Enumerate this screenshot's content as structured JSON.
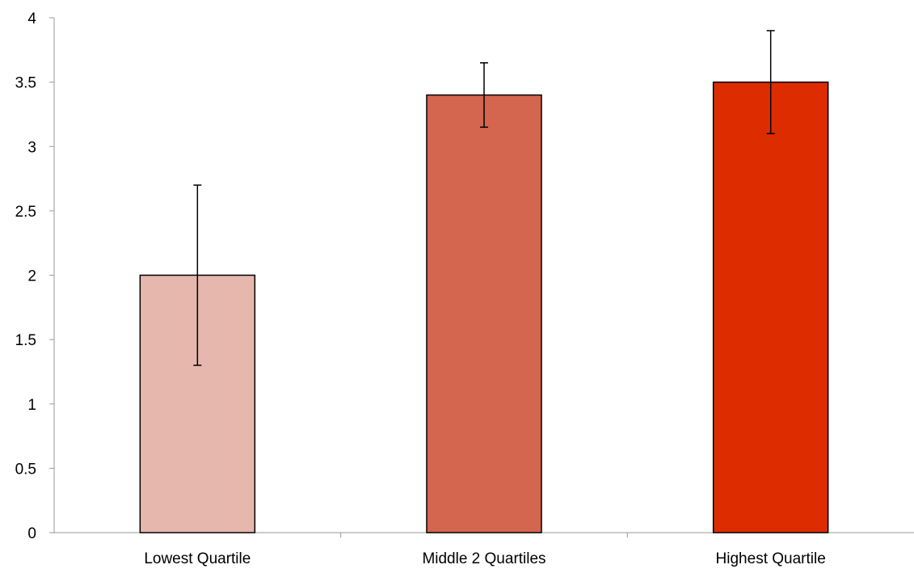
{
  "chart_data": {
    "type": "bar",
    "title": "",
    "xlabel": "",
    "ylabel": "",
    "categories": [
      "Lowest Quartile",
      "Middle 2 Quartiles",
      "Highest Quartile"
    ],
    "values": [
      2.0,
      3.4,
      3.5
    ],
    "error_low": [
      1.3,
      3.15,
      3.1
    ],
    "error_high": [
      2.7,
      3.65,
      3.9
    ],
    "bar_colors": [
      "#e6b7ad",
      "#d4654e",
      "#dc2c00"
    ],
    "ylim": [
      0,
      4
    ],
    "y_ticks": [
      "0",
      "0.5",
      "1",
      "1.5",
      "2",
      "2.5",
      "3",
      "3.5",
      "4"
    ],
    "grid": false,
    "legend": "none"
  }
}
